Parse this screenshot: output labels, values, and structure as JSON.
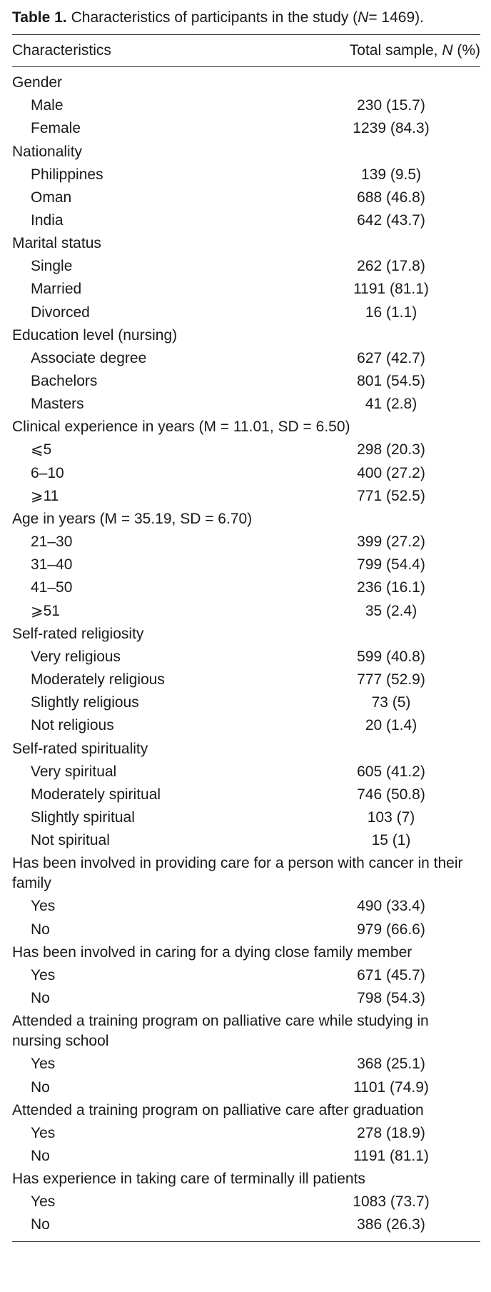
{
  "title": {
    "label": "Table 1.",
    "text_before": "Characteristics of participants in the study (",
    "n_symbol": "N",
    "text_after": "= 1469)."
  },
  "header": {
    "characteristics": "Characteristics",
    "total_before": "Total sample, ",
    "n_symbol": "N",
    "total_after": " (%)"
  },
  "sections": [
    {
      "heading": "Gender",
      "items": [
        [
          "Male",
          "230 (15.7)"
        ],
        [
          "Female",
          "1239 (84.3)"
        ]
      ]
    },
    {
      "heading": "Nationality",
      "items": [
        [
          "Philippines",
          "139 (9.5)"
        ],
        [
          "Oman",
          "688 (46.8)"
        ],
        [
          "India",
          "642 (43.7)"
        ]
      ]
    },
    {
      "heading": "Marital status",
      "items": [
        [
          "Single",
          "262 (17.8)"
        ],
        [
          "Married",
          "1191 (81.1)"
        ],
        [
          "Divorced",
          "16 (1.1)"
        ]
      ]
    },
    {
      "heading": "Education level (nursing)",
      "items": [
        [
          "Associate degree",
          "627 (42.7)"
        ],
        [
          "Bachelors",
          "801 (54.5)"
        ],
        [
          "Masters",
          "41 (2.8)"
        ]
      ]
    },
    {
      "heading": "Clinical experience in years (M = 11.01, SD = 6.50)",
      "items": [
        [
          "⩽5",
          "298 (20.3)"
        ],
        [
          "6–10",
          "400 (27.2)"
        ],
        [
          "⩾11",
          "771 (52.5)"
        ]
      ]
    },
    {
      "heading": "Age in years (M = 35.19, SD = 6.70)",
      "items": [
        [
          "21–30",
          "399 (27.2)"
        ],
        [
          "31–40",
          "799 (54.4)"
        ],
        [
          "41–50",
          "236 (16.1)"
        ],
        [
          "⩾51",
          "35 (2.4)"
        ]
      ]
    },
    {
      "heading": "Self-rated religiosity",
      "items": [
        [
          "Very religious",
          "599 (40.8)"
        ],
        [
          "Moderately religious",
          "777 (52.9)"
        ],
        [
          "Slightly religious",
          "73 (5)"
        ],
        [
          "Not religious",
          "20 (1.4)"
        ]
      ]
    },
    {
      "heading": "Self-rated spirituality",
      "items": [
        [
          "Very spiritual",
          "605 (41.2)"
        ],
        [
          "Moderately spiritual",
          "746 (50.8)"
        ],
        [
          "Slightly spiritual",
          "103 (7)"
        ],
        [
          "Not spiritual",
          "15 (1)"
        ]
      ]
    },
    {
      "heading": "Has been involved in providing care for a person with cancer in their family",
      "items": [
        [
          "Yes",
          "490 (33.4)"
        ],
        [
          "No",
          "979 (66.6)"
        ]
      ]
    },
    {
      "heading": "Has been involved in caring for a dying close family member",
      "items": [
        [
          "Yes",
          "671 (45.7)"
        ],
        [
          "No",
          "798 (54.3)"
        ]
      ]
    },
    {
      "heading": "Attended a training program on palliative care while studying in nursing school",
      "items": [
        [
          "Yes",
          "368 (25.1)"
        ],
        [
          "No",
          "1101 (74.9)"
        ]
      ]
    },
    {
      "heading": "Attended a training program on palliative care after graduation",
      "items": [
        [
          "Yes",
          "278 (18.9)"
        ],
        [
          "No",
          "1191 (81.1)"
        ]
      ]
    },
    {
      "heading": "Has experience in taking care of terminally ill patients",
      "items": [
        [
          "Yes",
          "1083 (73.7)"
        ],
        [
          "No",
          "386 (26.3)"
        ]
      ]
    }
  ]
}
